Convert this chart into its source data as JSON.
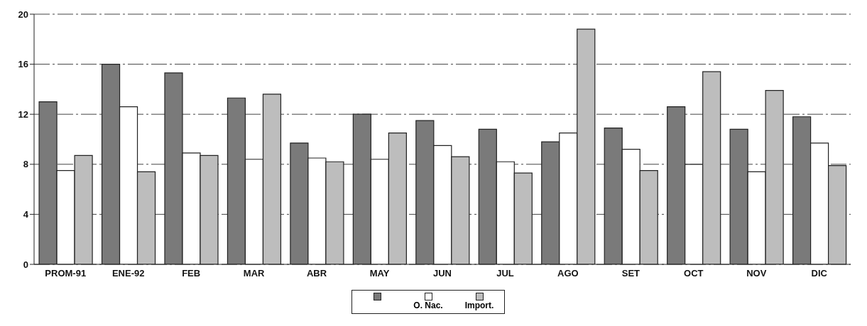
{
  "chart_data": {
    "type": "bar",
    "categories": [
      "PROM-91",
      "ENE-92",
      "FEB",
      "MAR",
      "ABR",
      "MAY",
      "JUN",
      "JUL",
      "AGO",
      "SET",
      "OCT",
      "NOV",
      "DIC"
    ],
    "series": [
      {
        "color": "#7a7a7a",
        "values": [
          13.0,
          16.0,
          15.3,
          13.3,
          9.7,
          12.0,
          11.5,
          10.8,
          9.8,
          10.9,
          12.6,
          10.8,
          11.8
        ]
      },
      {
        "name": "O. Nac.",
        "color": "#ffffff",
        "values": [
          7.5,
          12.6,
          8.9,
          8.4,
          8.5,
          8.4,
          9.5,
          8.2,
          10.5,
          9.2,
          8.0,
          7.4,
          9.7
        ]
      },
      {
        "name": "Import.",
        "color": "#bdbdbd",
        "values": [
          8.7,
          7.4,
          8.7,
          13.6,
          8.2,
          10.5,
          8.6,
          7.3,
          18.8,
          7.5,
          15.4,
          13.9,
          7.9
        ]
      }
    ],
    "ylim": [
      0,
      20
    ],
    "yticks": [
      0,
      4,
      8,
      12,
      16,
      20
    ],
    "grid": "y",
    "legend": "bottom"
  }
}
